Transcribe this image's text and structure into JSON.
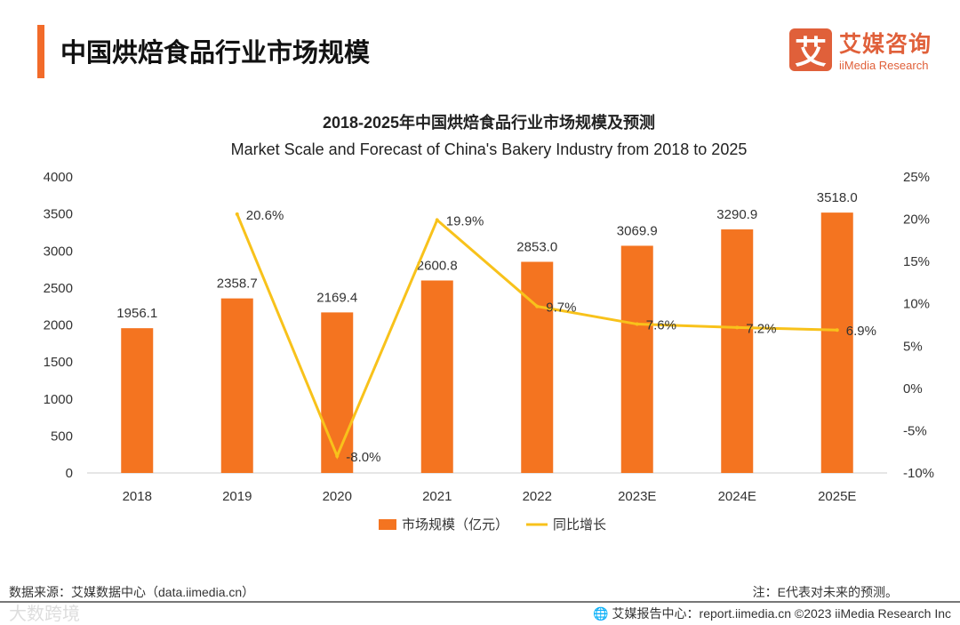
{
  "header": {
    "title": "中国烘焙食品行业市场规模",
    "logo_mark": "艾",
    "logo_cn": "艾媒咨询",
    "logo_en": "iiMedia Research"
  },
  "chart_data": {
    "type": "bar+line",
    "title": "2018-2025年中国烘焙食品行业市场规模及预测",
    "subtitle": "Market Scale and Forecast of China's Bakery Industry from 2018 to 2025",
    "categories": [
      "2018",
      "2019",
      "2020",
      "2021",
      "2022",
      "2023E",
      "2024E",
      "2025E"
    ],
    "series": [
      {
        "name": "市场规模（亿元）",
        "type": "bar",
        "axis": "left",
        "color": "#f47420",
        "values": [
          1956.1,
          2358.7,
          2169.4,
          2600.8,
          2853.0,
          3069.9,
          3290.9,
          3518.0
        ],
        "labels": [
          "1956.1",
          "2358.7",
          "2169.4",
          "2600.8",
          "2853.0",
          "3069.9",
          "3290.9",
          "3518.0"
        ]
      },
      {
        "name": "同比增长",
        "type": "line",
        "axis": "right",
        "color": "#f8c21b",
        "values": [
          null,
          20.6,
          -8.0,
          19.9,
          9.7,
          7.6,
          7.2,
          6.9
        ],
        "labels": [
          "",
          "20.6%",
          "-8.0%",
          "19.9%",
          "9.7%",
          "7.6%",
          "7.2%",
          "6.9%"
        ]
      }
    ],
    "ylim": [
      0,
      4000
    ],
    "yticks": [
      "0",
      "500",
      "1000",
      "1500",
      "2000",
      "2500",
      "3000",
      "3500",
      "4000"
    ],
    "y2lim": [
      -10,
      25
    ],
    "y2ticks": [
      "-10%",
      "-5%",
      "0%",
      "5%",
      "10%",
      "15%",
      "20%",
      "25%"
    ],
    "legend": "bottom"
  },
  "footer": {
    "source": "数据来源：艾媒数据中心（data.iimedia.cn）",
    "note": "注：E代表对未来的预测。",
    "report": "艾媒报告中心：report.iimedia.cn  ©2023  iiMedia Research  Inc",
    "watermark": "大数跨境"
  }
}
